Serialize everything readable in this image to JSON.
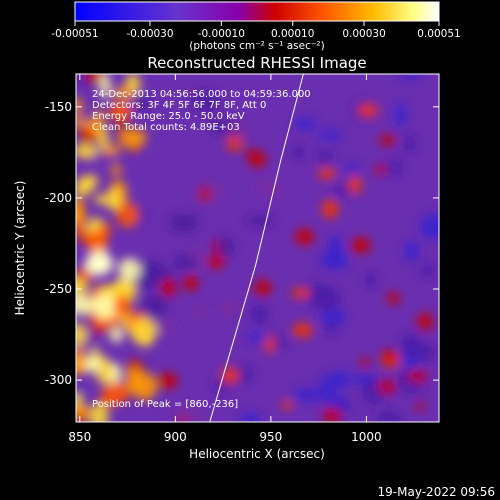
{
  "chart_data": {
    "type": "heatmap",
    "title": "Reconstructed RHESSI Image",
    "xlabel": "Heliocentric X (arcsec)",
    "ylabel": "Heliocentric Y (arcsec)",
    "xlim": [
      848,
      1038
    ],
    "ylim": [
      -323,
      -132
    ],
    "x_ticks": [
      "850",
      "900",
      "950",
      "1000"
    ],
    "y_ticks": [
      "-150",
      "-200",
      "-250",
      "-300"
    ],
    "x_tick_values": [
      850,
      900,
      950,
      1000
    ],
    "y_tick_values": [
      -150,
      -200,
      -250,
      -300
    ],
    "colorbar": {
      "tick_labels": [
        "-0.00051",
        "-0.00030",
        "-0.00010",
        "0.00010",
        "0.00030",
        "0.00051"
      ],
      "tick_values": [
        -0.00051,
        -0.0003,
        -0.0001,
        0.0001,
        0.0003,
        0.00051
      ],
      "range": [
        -0.00051,
        0.00051
      ],
      "unit_label": "(photons cm⁻² s⁻¹ asec⁻²)",
      "colormap": [
        "#0000ff",
        "#6633cc",
        "#8800aa",
        "#cc0000",
        "#ff5500",
        "#ffbb00",
        "#ffff88",
        "#ffffff"
      ]
    },
    "annotations": {
      "time": "24-Dec-2013 04:56:56.000 to 04:59:36.000",
      "detectors": "Detectors: 3F 4F 5F 6F 7F 8F, Att 0",
      "energy": "Energy Range: 25.0 - 50.0 keV",
      "clean": "Clean     Total counts: 4.89E+03",
      "peak": "Position of Peak = [860,-236]"
    },
    "peak_position": [
      860,
      -236
    ],
    "limb": {
      "x": [
        918,
        930,
        942,
        955,
        967
      ],
      "y": [
        -323,
        -280,
        -237,
        -180,
        -132
      ]
    },
    "grid": false
  },
  "footer": {
    "timestamp": "19-May-2022 09:56"
  }
}
